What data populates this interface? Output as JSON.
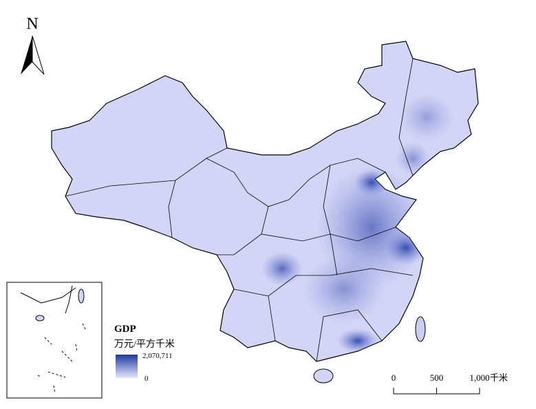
{
  "north_arrow": "N",
  "legend": {
    "title": "GDP",
    "unit": "万元/平方千米",
    "max_label": "2,070,711",
    "min_label": "0"
  },
  "scale_bar": {
    "ticks": [
      "0",
      "500",
      "1,000"
    ],
    "unit": "千米"
  }
}
